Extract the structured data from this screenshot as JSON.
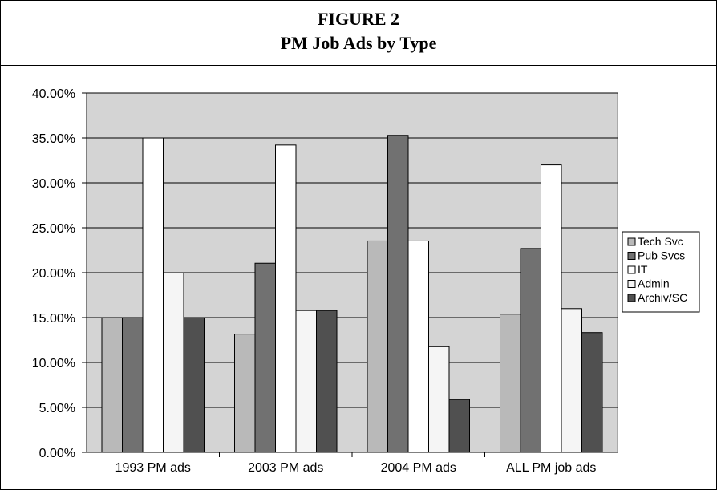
{
  "header": {
    "figure_label": "FIGURE 2",
    "title": "PM Job Ads by Type"
  },
  "colors": {
    "plot_background": "#d4d4d4",
    "series": [
      "#b9b9b9",
      "#717171",
      "#ffffff",
      "#f5f5f5",
      "#505050"
    ]
  },
  "chart_data": {
    "type": "bar",
    "title": "PM Job Ads by Type",
    "xlabel": "",
    "ylabel": "",
    "categories": [
      "1993 PM ads",
      "2003 PM ads",
      "2004 PM ads",
      "ALL PM job ads"
    ],
    "series": [
      {
        "name": "Tech Svc",
        "values": [
          0.15,
          0.1316,
          0.2353,
          0.1538
        ]
      },
      {
        "name": "Pub Svcs",
        "values": [
          0.15,
          0.2105,
          0.3529,
          0.2269
        ]
      },
      {
        "name": "IT",
        "values": [
          0.35,
          0.3421,
          0.2353,
          0.32
        ]
      },
      {
        "name": "Admin",
        "values": [
          0.2,
          0.1579,
          0.1176,
          0.16
        ]
      },
      {
        "name": "Archiv/SC",
        "values": [
          0.15,
          0.1579,
          0.0588,
          0.1333
        ]
      }
    ],
    "ylim": [
      0,
      0.4
    ],
    "yticks": [
      0,
      0.05,
      0.1,
      0.15,
      0.2,
      0.25,
      0.3,
      0.35,
      0.4
    ],
    "ytick_labels": [
      "0.00%",
      "5.00%",
      "10.00%",
      "15.00%",
      "20.00%",
      "25.00%",
      "30.00%",
      "35.00%",
      "40.00%"
    ],
    "grid": true,
    "legend_position": "right"
  }
}
